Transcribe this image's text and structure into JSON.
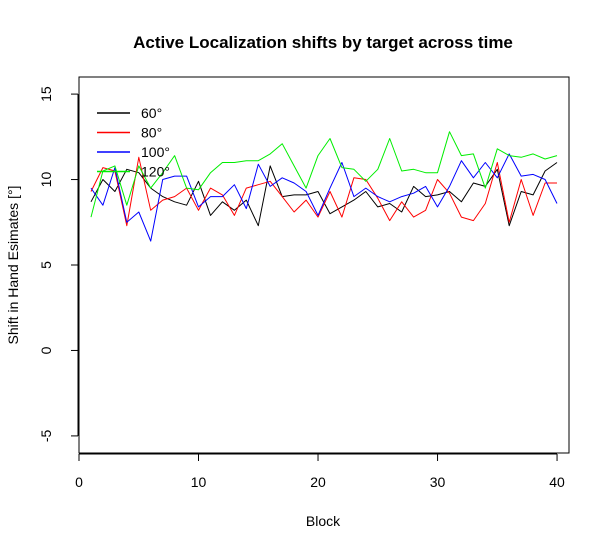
{
  "chart_data": {
    "type": "line",
    "title": "Active Localization shifts by target across time",
    "xlabel": "Block",
    "ylabel": "Shift in Hand Esimates [°]",
    "xlim": [
      0,
      41
    ],
    "ylim": [
      -6,
      16
    ],
    "xticks": [
      0,
      10,
      20,
      30,
      40
    ],
    "yticks": [
      -5,
      0,
      5,
      10,
      15
    ],
    "grid": false,
    "legend_position": "top-left",
    "x": [
      1,
      2,
      3,
      4,
      5,
      6,
      7,
      8,
      9,
      10,
      11,
      12,
      13,
      14,
      15,
      16,
      17,
      18,
      19,
      20,
      21,
      22,
      23,
      24,
      25,
      26,
      27,
      28,
      29,
      30,
      31,
      32,
      33,
      34,
      35,
      36,
      37,
      38,
      39,
      40
    ],
    "series": [
      {
        "name": "60°",
        "color": "#000000",
        "values": [
          8.7,
          10.0,
          9.3,
          10.6,
          10.4,
          9.5,
          9.0,
          8.7,
          8.5,
          9.9,
          7.9,
          8.7,
          8.2,
          8.8,
          7.3,
          10.8,
          9.0,
          9.1,
          9.1,
          9.3,
          8.0,
          8.4,
          8.8,
          9.3,
          8.4,
          8.6,
          8.1,
          9.6,
          9.0,
          9.1,
          9.3,
          8.7,
          9.8,
          9.6,
          10.6,
          7.3,
          9.3,
          9.1,
          10.5,
          11.0
        ]
      },
      {
        "name": "80°",
        "color": "#ff0000",
        "values": [
          9.3,
          10.7,
          10.5,
          7.3,
          11.3,
          8.2,
          8.8,
          9.0,
          9.5,
          8.2,
          9.5,
          9.1,
          7.9,
          9.5,
          9.7,
          9.9,
          9.0,
          8.1,
          8.8,
          7.8,
          9.3,
          7.8,
          10.1,
          10.0,
          8.9,
          7.6,
          8.7,
          7.8,
          8.2,
          10.0,
          9.2,
          7.8,
          7.6,
          8.6,
          11.0,
          7.5,
          10.0,
          7.9,
          9.8,
          9.8
        ]
      },
      {
        "name": "100°",
        "color": "#0000ff",
        "values": [
          9.5,
          8.5,
          10.7,
          7.5,
          8.1,
          6.4,
          10.0,
          10.2,
          10.2,
          8.4,
          9.0,
          9.0,
          9.7,
          8.3,
          10.9,
          9.6,
          10.1,
          9.8,
          9.3,
          7.9,
          9.5,
          11.0,
          9.0,
          9.5,
          9.0,
          8.7,
          9.0,
          9.2,
          9.6,
          8.4,
          9.6,
          11.1,
          10.1,
          11.0,
          10.1,
          11.5,
          10.2,
          10.3,
          10.0,
          8.6
        ]
      },
      {
        "name": "120°",
        "color": "#00ee00",
        "values": [
          7.8,
          10.5,
          10.8,
          8.5,
          10.8,
          9.5,
          10.4,
          11.4,
          9.5,
          9.4,
          10.4,
          11.0,
          11.0,
          11.1,
          11.1,
          11.5,
          12.1,
          10.8,
          9.5,
          11.4,
          12.4,
          10.7,
          10.6,
          9.9,
          10.6,
          12.4,
          10.5,
          10.6,
          10.4,
          10.4,
          12.8,
          11.4,
          11.5,
          9.5,
          11.8,
          11.4,
          11.3,
          11.5,
          11.2,
          11.4
        ]
      }
    ]
  }
}
